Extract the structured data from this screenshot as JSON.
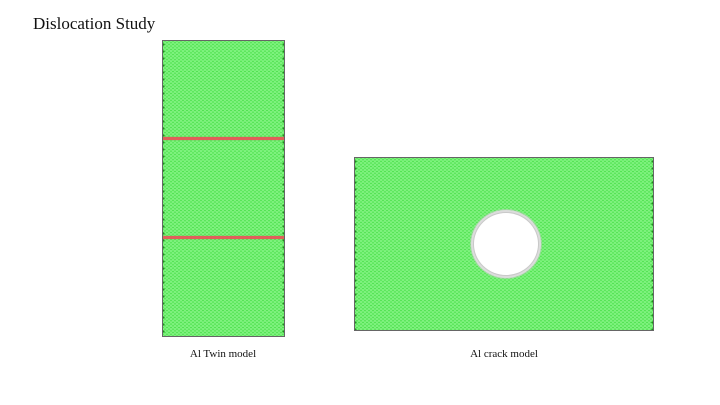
{
  "slide": {
    "title": "Dislocation Study"
  },
  "figures": [
    {
      "caption": "Al Twin model",
      "atom_color": "#2fd52f",
      "twin_boundary_color": "#e0605a"
    },
    {
      "caption": "Al crack model",
      "atom_color": "#2fd52f",
      "crack_edge_color": "#c9c9c9"
    }
  ]
}
